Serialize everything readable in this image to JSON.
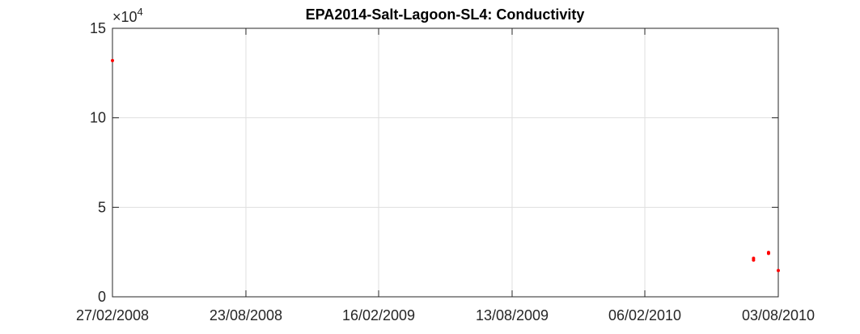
{
  "chart_data": {
    "type": "scatter",
    "title": "EPA2014-Salt-Lagoon-SL4: Conductivity",
    "xlabel": "",
    "ylabel": "",
    "x_type": "date",
    "x_ticks": [
      "27/02/2008",
      "23/08/2008",
      "16/02/2009",
      "13/08/2009",
      "06/02/2010",
      "03/08/2010"
    ],
    "xlim": [
      "2008-02-27",
      "2010-08-03"
    ],
    "y_ticks": [
      "0",
      "5",
      "10",
      "15"
    ],
    "ylim": [
      0,
      150000
    ],
    "y_exponent_base": "10",
    "y_exponent_power": "4",
    "grid": true,
    "marker_color": "#ff0000",
    "series": [
      {
        "points": [
          {
            "x": "2008-02-27",
            "y": 132000
          },
          {
            "x": "2010-07-01",
            "y": 20500
          },
          {
            "x": "2010-07-01",
            "y": 21500
          },
          {
            "x": "2010-07-21",
            "y": 24200
          },
          {
            "x": "2010-07-21",
            "y": 24800
          },
          {
            "x": "2010-08-03",
            "y": 14700
          }
        ]
      }
    ]
  }
}
